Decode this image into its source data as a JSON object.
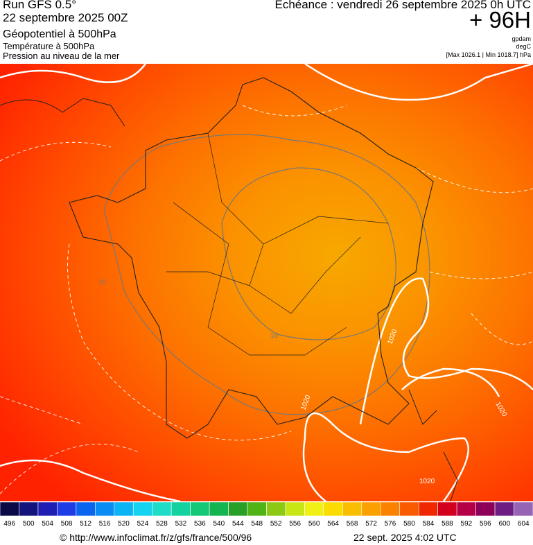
{
  "header": {
    "run": "Run GFS 0.5°",
    "date": "22 septembre 2025 00Z",
    "field_main": "Géopotentiel à 500hPa",
    "field_temp": "Température à 500hPa",
    "field_pressure": "Pression au niveau de la mer",
    "echeance": "Echéance : vendredi 26 septembre 2025 0h UTC",
    "horizon": "+ 96H",
    "unit_geo": "gpdam",
    "unit_temp": "degC",
    "range": "[Max 1026.1 | Min 1018.7] hPa"
  },
  "map": {
    "contour_labels": [
      "1020",
      "1020",
      "1020",
      "1020",
      "16",
      "16"
    ]
  },
  "colorbar": {
    "labels": [
      496,
      500,
      504,
      508,
      512,
      516,
      520,
      524,
      528,
      532,
      536,
      540,
      544,
      548,
      552,
      556,
      560,
      564,
      568,
      572,
      576,
      580,
      584,
      588,
      592,
      596,
      600,
      604
    ],
    "colors": [
      "#0a0a46",
      "#14147d",
      "#1e1eb4",
      "#1e3ce6",
      "#0a64f0",
      "#0a8cf5",
      "#0ab4f5",
      "#14d2f0",
      "#1edcc8",
      "#14d2a0",
      "#14c878",
      "#14b450",
      "#28a028",
      "#50b414",
      "#8cc814",
      "#c8e614",
      "#f0f014",
      "#fadc00",
      "#fabe00",
      "#faa000",
      "#fa8200",
      "#fa5a00",
      "#f02800",
      "#d2001e",
      "#b40046",
      "#8c005a",
      "#6e1e82",
      "#9664b4"
    ]
  },
  "footer": {
    "url": "© http://www.infoclimat.fr/z/gfs/france/500/96",
    "timestamp": "22 sept. 2025  4:02 UTC"
  }
}
